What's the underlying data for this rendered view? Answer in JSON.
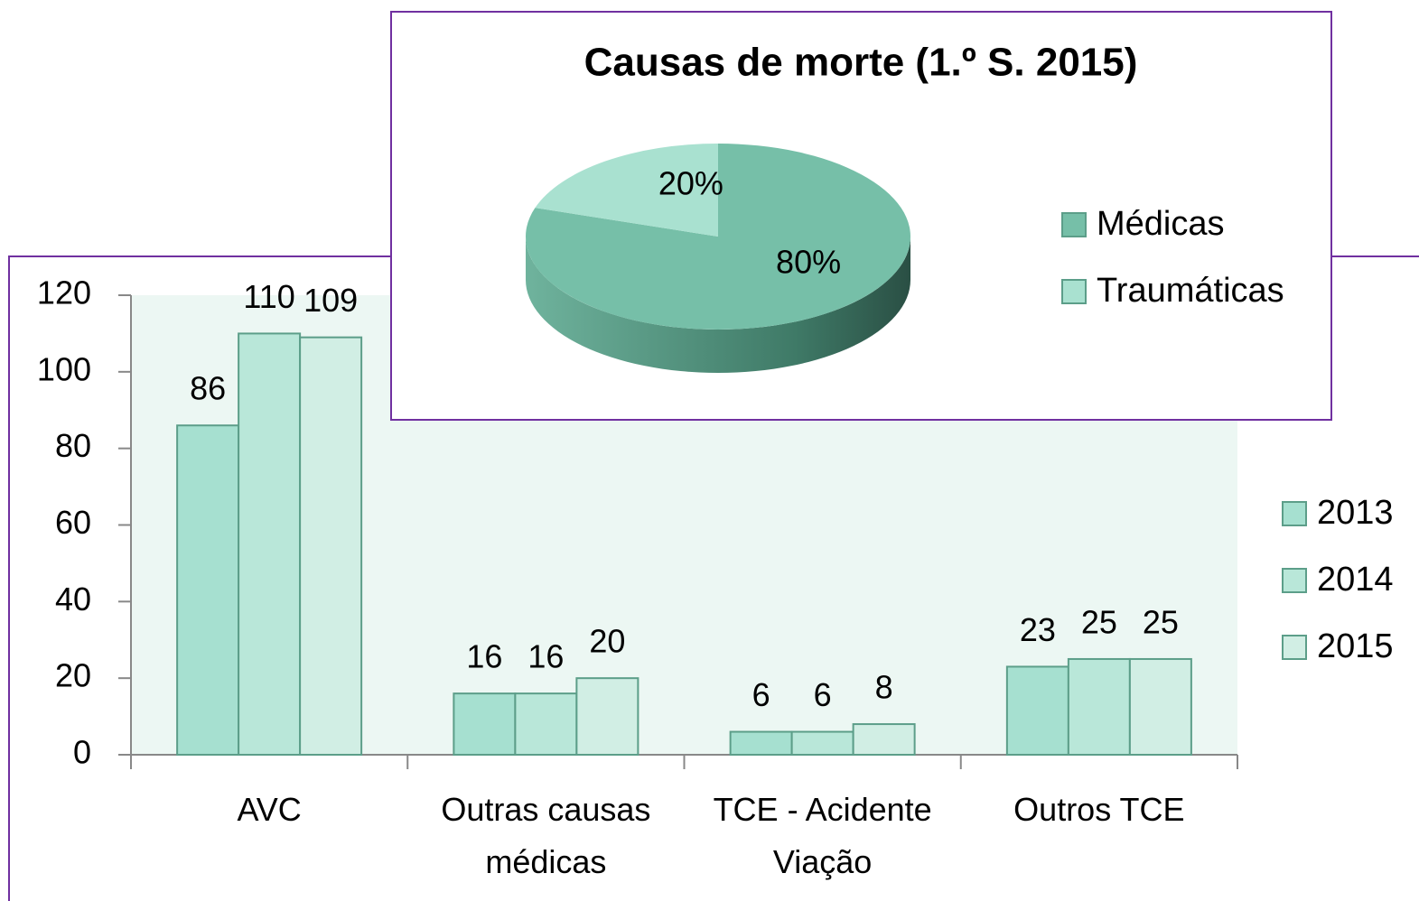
{
  "chart_data": [
    {
      "type": "bar",
      "categories": [
        "AVC",
        "Outras causas médicas",
        "TCE - Acidente Viação",
        "Outros TCE"
      ],
      "series": [
        {
          "name": "2013",
          "color": "#a6e0d0",
          "values": [
            86,
            16,
            6,
            23
          ]
        },
        {
          "name": "2014",
          "color": "#b9e7d9",
          "values": [
            110,
            16,
            6,
            25
          ]
        },
        {
          "name": "2015",
          "color": "#d1eee4",
          "values": [
            109,
            20,
            8,
            25
          ]
        }
      ],
      "ylim": [
        0,
        120
      ],
      "yticks": [
        0,
        20,
        40,
        60,
        80,
        100,
        120
      ],
      "legend": "right"
    },
    {
      "type": "pie",
      "title": "Causas de morte (1.º S. 2015)",
      "categories": [
        "Médicas",
        "Traumáticas"
      ],
      "values": [
        80,
        20
      ],
      "value_labels": [
        "80%",
        "20%"
      ],
      "colors": [
        "#76bfa8",
        "#a9e1d0"
      ],
      "legend": "right"
    }
  ]
}
